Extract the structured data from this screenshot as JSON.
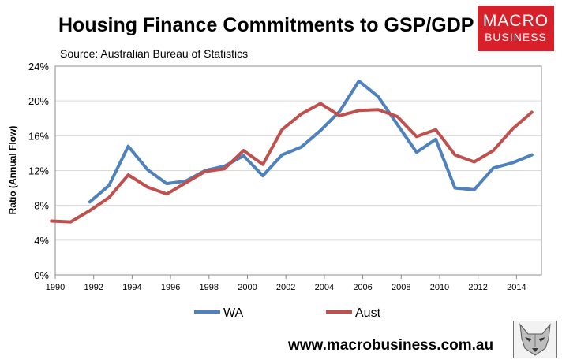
{
  "title": "Housing Finance Commitments to GSP/GDP",
  "source": "Source: Australian Bureau of Statistics",
  "logo": {
    "line1": "MACRO",
    "line2": "BUSINESS",
    "color": "#d7202a"
  },
  "footer": "www.macrobusiness.com.au",
  "fox_icon": "wolf-head-icon",
  "chart_data": {
    "type": "line",
    "ylabel": "Ratio (Annual Flow)",
    "xlabel": "",
    "xlim": [
      1990,
      2015.3
    ],
    "ylim": [
      0,
      24
    ],
    "x_ticks": [
      "1990",
      "1992",
      "1994",
      "1996",
      "1998",
      "2000",
      "2002",
      "2004",
      "2006",
      "2008",
      "2010",
      "2012",
      "2014"
    ],
    "y_ticks": [
      "0%",
      "4%",
      "8%",
      "12%",
      "16%",
      "20%",
      "24%"
    ],
    "grid": "horizontal",
    "legend": "bottom",
    "series": [
      {
        "name": "WA",
        "color": "#4f81bd",
        "x": [
          1991.8,
          1992.8,
          1993.8,
          1994.8,
          1995.8,
          1996.8,
          1997.8,
          1998.8,
          1999.8,
          2000.8,
          2001.8,
          2002.8,
          2003.8,
          2004.8,
          2005.8,
          2006.8,
          2007.8,
          2008.8,
          2009.8,
          2010.8,
          2011.8,
          2012.8,
          2013.8,
          2014.8
        ],
        "values": [
          8.4,
          10.3,
          14.8,
          12.1,
          10.5,
          10.8,
          12.0,
          12.5,
          13.7,
          11.4,
          13.8,
          14.7,
          16.6,
          18.8,
          22.3,
          20.5,
          17.3,
          14.1,
          15.6,
          10.0,
          9.8,
          12.3,
          12.9,
          13.8
        ]
      },
      {
        "name": "Aust",
        "color": "#c0504d",
        "x": [
          1989.8,
          1990.8,
          1991.8,
          1992.8,
          1993.8,
          1994.8,
          1995.8,
          1996.8,
          1997.8,
          1998.8,
          1999.8,
          2000.8,
          2001.8,
          2002.8,
          2003.8,
          2004.8,
          2005.8,
          2006.8,
          2007.8,
          2008.8,
          2009.8,
          2010.8,
          2011.8,
          2012.8,
          2013.8,
          2014.8
        ],
        "values": [
          6.2,
          6.1,
          7.4,
          8.9,
          11.5,
          10.1,
          9.3,
          10.6,
          11.9,
          12.2,
          14.3,
          12.7,
          16.7,
          18.5,
          19.7,
          18.3,
          18.9,
          19.0,
          18.2,
          15.9,
          16.7,
          13.8,
          13.0,
          14.3,
          16.8,
          18.7
        ]
      }
    ]
  }
}
